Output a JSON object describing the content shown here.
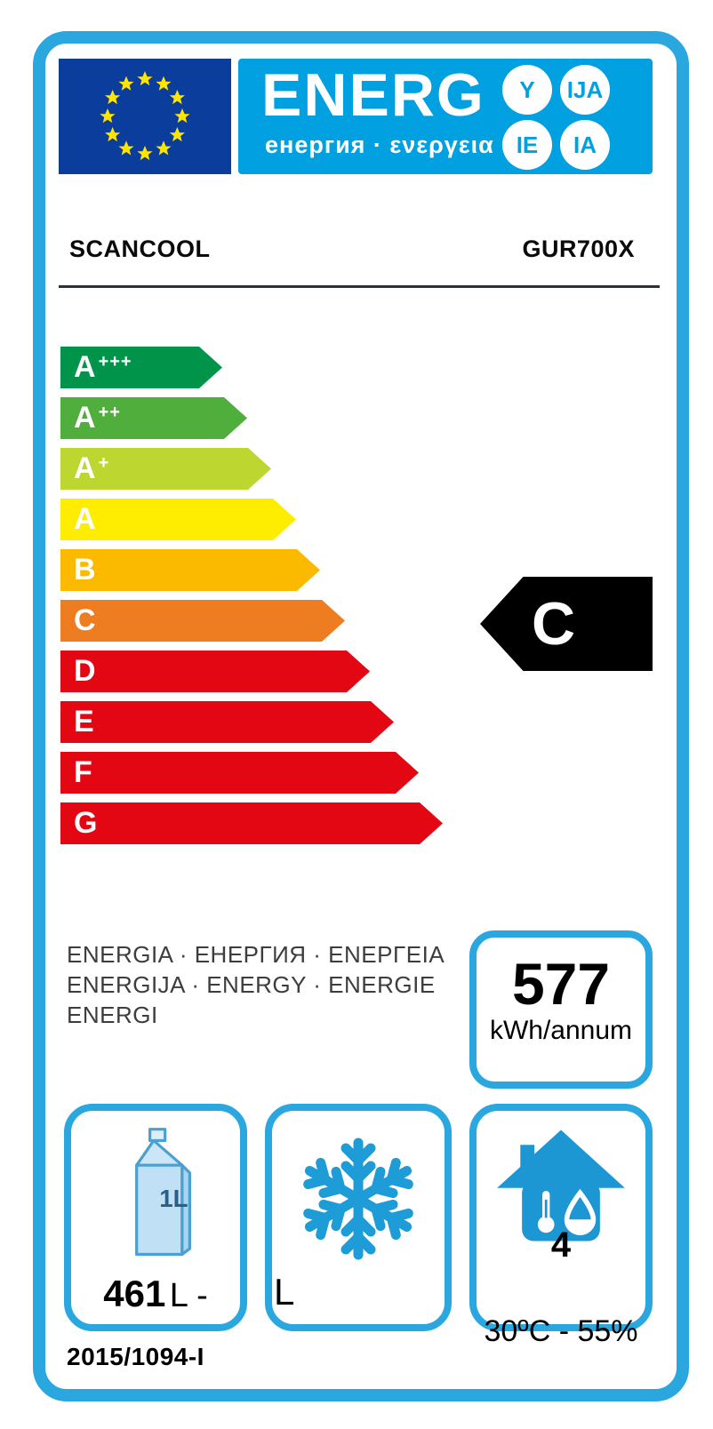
{
  "label": {
    "header": {
      "energ_text": "ENERG",
      "subtitle": "енергия · ενεργεια",
      "circles": [
        "Y",
        "IJA",
        "IE",
        "IA"
      ]
    },
    "brand": "SCANCOOL",
    "model": "GUR700X",
    "rating_scale": [
      {
        "grade": "A",
        "plus": "+++",
        "color": "#00944A"
      },
      {
        "grade": "A",
        "plus": "++",
        "color": "#4FAE3C"
      },
      {
        "grade": "A",
        "plus": "+",
        "color": "#BED630"
      },
      {
        "grade": "A",
        "plus": "",
        "color": "#FFED00"
      },
      {
        "grade": "B",
        "plus": "",
        "color": "#FBBA00"
      },
      {
        "grade": "C",
        "plus": "",
        "color": "#EE7D22"
      },
      {
        "grade": "D",
        "plus": "",
        "color": "#E30613"
      },
      {
        "grade": "E",
        "plus": "",
        "color": "#E30613"
      },
      {
        "grade": "F",
        "plus": "",
        "color": "#E30613"
      },
      {
        "grade": "G",
        "plus": "",
        "color": "#E30613"
      }
    ],
    "rating": "C",
    "energy_words_lines": [
      "ENERGIA · ЕНЕРГИЯ · ΕΝΕΡΓΕΙΑ",
      "ENERGIJA · ENERGY · ENERGIE",
      "ENERGI"
    ],
    "consumption": {
      "value": "577",
      "unit": "kWh/annum"
    },
    "fridge": {
      "volume_value": "461",
      "volume_unit": "L -",
      "carton_label": "1L"
    },
    "freezer": {
      "volume_text": "L"
    },
    "climate": {
      "class": "4",
      "condition": "30ºC - 55%"
    },
    "regulation": "2015/1094-I",
    "colors": {
      "frame_blue": "#2BA7E0",
      "panel_blue": "#00A0E1",
      "eu_flag_blue": "#0b3e9c",
      "star_yellow": "#FFE500",
      "pictogram_blue": "#1D97D4",
      "rating_arrow_black": "#000000"
    }
  }
}
